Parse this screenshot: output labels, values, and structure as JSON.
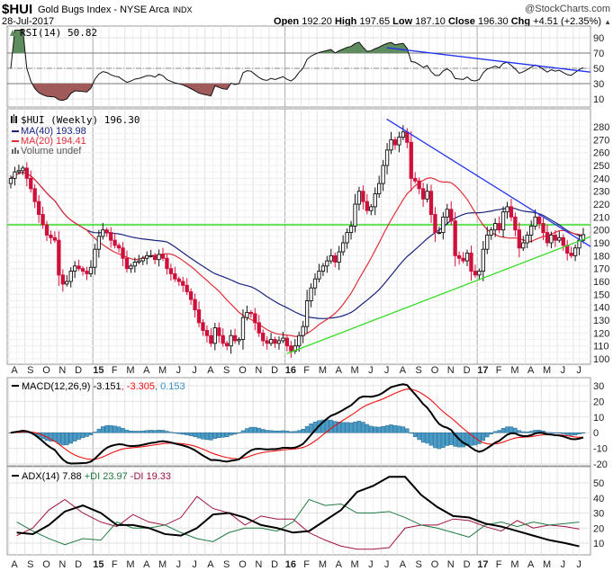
{
  "header": {
    "symbol": "$HUI",
    "name": "Gold Bugs Index - NYSE Arca",
    "exchange": "INDX",
    "date": "28-Jul-2017",
    "copyright": "@StockCharts.com",
    "open_label": "Open",
    "open": "192.20",
    "high_label": "High",
    "high": "197.65",
    "low_label": "Low",
    "low": "187.10",
    "close_label": "Close",
    "close": "196.30",
    "chg_label": "Chg",
    "chg": "+4.51 (+2.35%)",
    "chg_arrow": "▲"
  },
  "colors": {
    "up": "#ffffff",
    "down": "#d0103a",
    "ma40": "#1a237e",
    "ma20": "#e0303a",
    "trend_blue": "#2233ee",
    "trend_green": "#33dd22",
    "macd": "#000000",
    "signal": "#ee1111",
    "hist": "#4a9cc8",
    "plus_di": "#1e7a3e",
    "minus_di": "#a0123c",
    "adx": "#000000",
    "rsi_over": "#5e8c5e",
    "rsi_under": "#a05a5a"
  },
  "chart_data": {
    "type": "candlestick",
    "price": {
      "legend": "$HUI (Weekly) 196.30",
      "ma40_legend": "MA(40) 193.98",
      "ma20_legend": "MA(20) 194.41",
      "volume_legend": "Volume undef",
      "ylim": [
        95,
        290
      ],
      "ticks": [
        "100",
        "110",
        "120",
        "130",
        "140",
        "150",
        "160",
        "170",
        "180",
        "190",
        "200",
        "210",
        "220",
        "230",
        "240",
        "250",
        "260",
        "270",
        "280"
      ],
      "horizontal_line": 204,
      "trendlines": [
        {
          "color": "blue",
          "from": {
            "date": "2016-07-08",
            "value": 286
          },
          "to": {
            "date": "2017-07-25",
            "value": 190
          }
        },
        {
          "color": "green",
          "from": {
            "date": "2016-01-01",
            "value": 104
          },
          "to": {
            "date": "2017-07-25",
            "value": 193
          }
        }
      ],
      "months": [
        {
          "label": "A",
          "month": "2014-08",
          "closes": [
            240,
            245,
            246,
            248
          ]
        },
        {
          "label": "S",
          "month": "2014-09",
          "closes": [
            240,
            232,
            222,
            212
          ]
        },
        {
          "label": "O",
          "month": "2014-10",
          "closes": [
            204,
            196,
            194,
            192
          ]
        },
        {
          "label": "N",
          "month": "2014-11",
          "closes": [
            165,
            158,
            160,
            168
          ]
        },
        {
          "label": "D",
          "month": "2014-12",
          "closes": [
            172,
            170,
            168,
            166,
            171
          ]
        },
        {
          "label": "15",
          "month": "2015-01",
          "closes": [
            185,
            195,
            200,
            198
          ]
        },
        {
          "label": "F",
          "month": "2015-02",
          "closes": [
            192,
            188,
            186,
            178
          ]
        },
        {
          "label": "M",
          "month": "2015-03",
          "closes": [
            170,
            172,
            175,
            176
          ]
        },
        {
          "label": "A",
          "month": "2015-04",
          "closes": [
            178,
            180,
            180,
            177
          ]
        },
        {
          "label": "M",
          "month": "2015-05",
          "closes": [
            181,
            178,
            170,
            166
          ]
        },
        {
          "label": "J",
          "month": "2015-06",
          "closes": [
            162,
            160,
            157,
            152
          ]
        },
        {
          "label": "J",
          "month": "2015-07",
          "closes": [
            146,
            138,
            128,
            122
          ]
        },
        {
          "label": "A",
          "month": "2015-08",
          "closes": [
            118,
            112,
            124,
            118
          ]
        },
        {
          "label": "S",
          "month": "2015-09",
          "closes": [
            112,
            110,
            118,
            114
          ]
        },
        {
          "label": "O",
          "month": "2015-10",
          "closes": [
            115,
            132,
            136,
            135
          ]
        },
        {
          "label": "N",
          "month": "2015-11",
          "closes": [
            128,
            120,
            114,
            112
          ]
        },
        {
          "label": "D",
          "month": "2015-12",
          "closes": [
            115,
            112,
            114,
            116
          ]
        },
        {
          "label": "16",
          "month": "2016-01",
          "closes": [
            110,
            106,
            110,
            118
          ]
        },
        {
          "label": "F",
          "month": "2016-02",
          "closes": [
            125,
            145,
            155,
            162
          ]
        },
        {
          "label": "M",
          "month": "2016-03",
          "closes": [
            168,
            172,
            176,
            180
          ]
        },
        {
          "label": "A",
          "month": "2016-04",
          "closes": [
            175,
            183,
            190,
            198
          ]
        },
        {
          "label": "M",
          "month": "2016-05",
          "closes": [
            203,
            220,
            230,
            222
          ]
        },
        {
          "label": "J",
          "month": "2016-06",
          "closes": [
            215,
            218,
            228,
            236
          ]
        },
        {
          "label": "J",
          "month": "2016-07",
          "closes": [
            250,
            262,
            270,
            266
          ]
        },
        {
          "label": "A",
          "month": "2016-08",
          "closes": [
            272,
            276,
            268,
            240
          ]
        },
        {
          "label": "S",
          "month": "2016-09",
          "closes": [
            238,
            232,
            224,
            230
          ]
        },
        {
          "label": "O",
          "month": "2016-10",
          "closes": [
            212,
            198,
            198,
            210
          ]
        },
        {
          "label": "N",
          "month": "2016-11",
          "closes": [
            216,
            207,
            180,
            178
          ]
        },
        {
          "label": "D",
          "month": "2016-12",
          "closes": [
            176,
            182,
            168,
            165
          ]
        },
        {
          "label": "17",
          "month": "2017-01",
          "closes": [
            168,
            185,
            196,
            200
          ]
        },
        {
          "label": "F",
          "month": "2017-02",
          "closes": [
            205,
            200,
            214,
            218
          ]
        },
        {
          "label": "M",
          "month": "2017-03",
          "closes": [
            210,
            200,
            186,
            190
          ]
        },
        {
          "label": "A",
          "month": "2017-04",
          "closes": [
            196,
            203,
            210,
            205
          ]
        },
        {
          "label": "M",
          "month": "2017-05",
          "closes": [
            198,
            190,
            196,
            192
          ]
        },
        {
          "label": "J",
          "month": "2017-06",
          "closes": [
            194,
            188,
            182,
            180
          ]
        },
        {
          "label": "J",
          "month": "2017-07",
          "closes": [
            186,
            192,
            196.3
          ]
        }
      ]
    },
    "rsi": {
      "legend": "RSI(14) 50.82",
      "period": 14,
      "ticks": [
        "90",
        "70",
        "50",
        "30",
        "10"
      ],
      "overbought": 70,
      "oversold": 30,
      "midline": 50,
      "trendline": {
        "from": {
          "date": "2016-07-08",
          "value": 77
        },
        "to": {
          "date": "2017-07-25",
          "value": 46
        }
      }
    },
    "macd": {
      "legend_macd": "MACD(12,26,9) -3.151",
      "legend_signal": ", -3.305",
      "legend_hist": ", 0.153",
      "params": [
        12,
        26,
        9
      ],
      "ticks": [
        "30",
        "20",
        "10",
        "0",
        "-10",
        "-20"
      ]
    },
    "adx": {
      "legend_adx": "ADX(14) 7.88",
      "legend_plus": "+DI 23.97",
      "legend_minus": "-DI 19.33",
      "ticks": [
        "50",
        "40",
        "30",
        "20",
        "10"
      ],
      "adx": [
        17,
        16,
        22,
        31,
        35,
        30,
        22,
        22,
        20,
        16,
        15,
        20,
        29,
        30,
        27,
        22,
        20,
        17,
        18,
        25,
        32,
        44,
        48,
        54,
        54,
        42,
        34,
        28,
        27,
        23,
        21,
        18,
        15,
        12,
        10,
        7.88
      ],
      "plus_di": [
        24,
        18,
        13,
        9,
        13,
        12,
        24,
        20,
        20,
        22,
        17,
        13,
        11,
        17,
        20,
        20,
        18,
        24,
        39,
        35,
        36,
        30,
        30,
        31,
        27,
        22,
        20,
        17,
        14,
        22,
        24,
        21,
        24,
        22,
        23,
        23.97
      ],
      "minus_di": [
        15,
        20,
        32,
        39,
        30,
        24,
        21,
        29,
        24,
        22,
        27,
        41,
        33,
        30,
        22,
        28,
        26,
        26,
        17,
        12,
        8,
        6,
        6,
        7,
        20,
        22,
        22,
        26,
        25,
        21,
        18,
        25,
        20,
        22,
        21,
        19.33
      ]
    }
  }
}
